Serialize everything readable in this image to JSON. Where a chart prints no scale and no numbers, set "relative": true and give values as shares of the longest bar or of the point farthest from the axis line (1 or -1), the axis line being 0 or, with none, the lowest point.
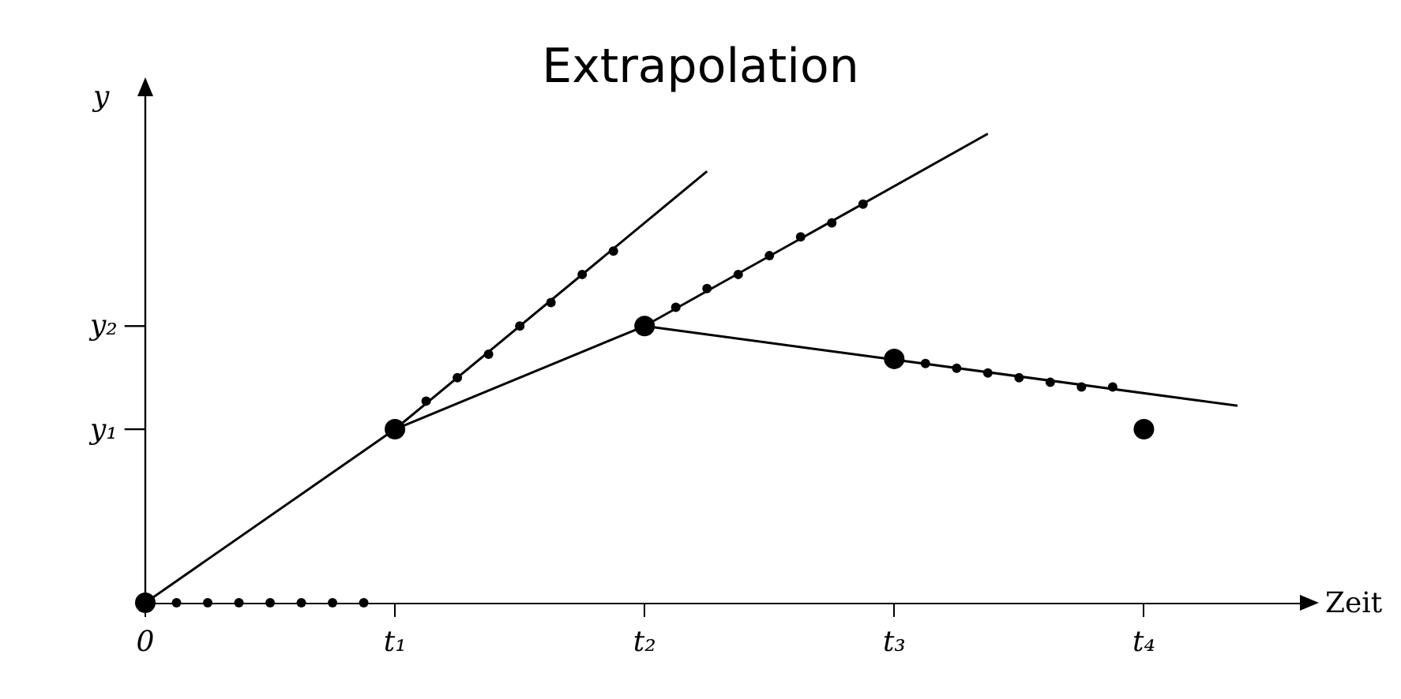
{
  "chart_data": {
    "type": "line",
    "title": "Extrapolation",
    "xlabel": "Zeit",
    "ylabel": "y",
    "relative": true,
    "grid": false,
    "legend": false,
    "categories": [
      "0",
      null,
      null,
      null,
      null,
      null,
      null,
      null,
      "t₁",
      null,
      null,
      null,
      null,
      null,
      null,
      null,
      "t₂",
      null,
      null,
      null,
      null,
      null,
      null,
      null,
      "t₃",
      null,
      null,
      null,
      null,
      null,
      null,
      null,
      "t₄",
      null,
      null,
      null,
      null,
      null
    ],
    "ref_lines": [
      {
        "axis": "y",
        "value": 0.37,
        "label": "y₁"
      },
      {
        "axis": "y",
        "value": 0.59,
        "label": "y₂"
      }
    ],
    "series": [
      {
        "color": "#000000",
        "values": [
          0,
          null,
          null,
          null,
          null,
          null,
          null,
          null,
          0.37,
          null,
          null,
          null,
          null,
          null,
          null,
          null,
          null,
          null,
          null,
          null,
          null,
          null,
          null,
          null,
          null,
          null,
          null,
          null,
          null,
          null,
          null,
          null,
          null,
          null,
          null,
          null,
          null,
          null
        ]
      },
      {
        "color": "#000000",
        "values": [
          null,
          null,
          null,
          null,
          null,
          null,
          null,
          null,
          0.37,
          null,
          null,
          null,
          null,
          null,
          null,
          null,
          null,
          null,
          0.92,
          null,
          null,
          null,
          null,
          null,
          null,
          null,
          null,
          null,
          null,
          null,
          null,
          null,
          null,
          null,
          null,
          null,
          null,
          null
        ]
      },
      {
        "color": "#000000",
        "values": [
          null,
          null,
          null,
          null,
          null,
          null,
          null,
          null,
          0.37,
          null,
          null,
          null,
          null,
          null,
          null,
          null,
          0.59,
          null,
          null,
          null,
          null,
          null,
          null,
          null,
          null,
          null,
          null,
          null,
          null,
          null,
          null,
          null,
          null,
          null,
          null,
          null,
          null,
          null
        ]
      },
      {
        "color": "#000000",
        "values": [
          null,
          null,
          null,
          null,
          null,
          null,
          null,
          null,
          null,
          null,
          null,
          null,
          null,
          null,
          null,
          null,
          0.59,
          null,
          null,
          null,
          null,
          null,
          null,
          null,
          null,
          null,
          null,
          1,
          null,
          null,
          null,
          null,
          null,
          null,
          null,
          null,
          null,
          null
        ]
      },
      {
        "color": "#000000",
        "values": [
          null,
          null,
          null,
          null,
          null,
          null,
          null,
          null,
          null,
          null,
          null,
          null,
          null,
          null,
          null,
          null,
          0.59,
          null,
          null,
          null,
          null,
          null,
          null,
          null,
          null,
          null,
          null,
          null,
          null,
          null,
          null,
          null,
          null,
          null,
          null,
          0.42,
          null,
          null
        ]
      },
      {
        "type": "scatter",
        "marker": "circle",
        "color": "#000000",
        "values": [
          null,
          0,
          0,
          0,
          0,
          0,
          0,
          0,
          null,
          null,
          null,
          null,
          null,
          null,
          null,
          null,
          null,
          null,
          null,
          null,
          null,
          null,
          null,
          null,
          null,
          null,
          null,
          null,
          null,
          null,
          null,
          null,
          null,
          null,
          null,
          null,
          null,
          null
        ]
      },
      {
        "type": "scatter",
        "marker": "circle",
        "color": "#000000",
        "values": [
          null,
          null,
          null,
          null,
          null,
          null,
          null,
          null,
          null,
          0.43,
          0.48,
          0.53,
          0.59,
          0.64,
          0.7,
          0.75,
          null,
          null,
          null,
          null,
          null,
          null,
          null,
          null,
          null,
          null,
          null,
          null,
          null,
          null,
          null,
          null,
          null,
          null,
          null,
          null,
          null,
          null
        ]
      },
      {
        "type": "scatter",
        "marker": "circle",
        "color": "#000000",
        "values": [
          null,
          null,
          null,
          null,
          null,
          null,
          null,
          null,
          null,
          null,
          null,
          null,
          null,
          null,
          null,
          null,
          null,
          0.63,
          0.67,
          0.7,
          0.74,
          0.78,
          0.81,
          0.85,
          null,
          null,
          null,
          null,
          null,
          null,
          null,
          null,
          null,
          null,
          null,
          null,
          null,
          null
        ]
      },
      {
        "type": "scatter",
        "marker": "circle",
        "color": "#000000",
        "values": [
          null,
          null,
          null,
          null,
          null,
          null,
          null,
          null,
          null,
          null,
          null,
          null,
          null,
          null,
          null,
          null,
          null,
          null,
          null,
          null,
          null,
          null,
          null,
          null,
          null,
          0.51,
          0.5,
          0.49,
          0.48,
          0.47,
          0.46,
          0.46,
          null,
          null,
          null,
          null,
          null,
          null
        ]
      },
      {
        "type": "scatter",
        "marker": "circle",
        "color": "#000000",
        "values": [
          0,
          null,
          null,
          null,
          null,
          null,
          null,
          null,
          0.37,
          null,
          null,
          null,
          null,
          null,
          null,
          null,
          0.59,
          null,
          null,
          null,
          null,
          null,
          null,
          null,
          0.52,
          null,
          null,
          null,
          null,
          null,
          null,
          null,
          0.37,
          null,
          null,
          null,
          null,
          null
        ]
      }
    ]
  }
}
